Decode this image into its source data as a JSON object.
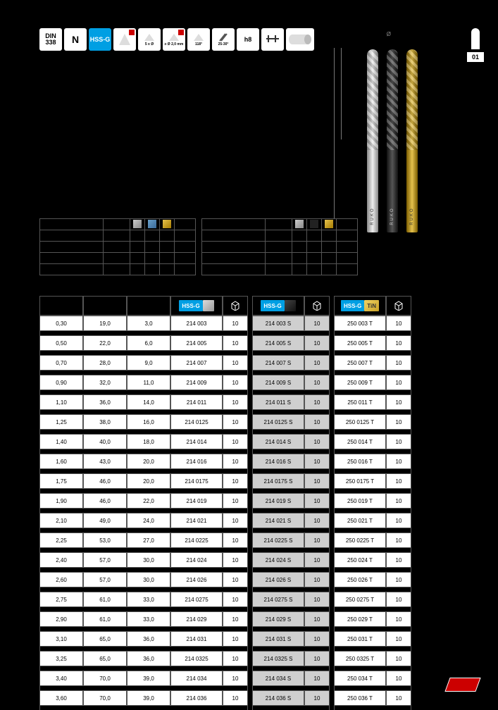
{
  "page_indicator": "01",
  "icons": {
    "din_top": "DIN",
    "din_bottom": "338",
    "n": "N",
    "hssg": "HSS-G",
    "depth": "5 x Ø",
    "diam": "≥ Ø 2,0 mm",
    "angle": "118°",
    "helix": "25-30°",
    "tol": "h8"
  },
  "drill_brand": "RUKO",
  "diam_symbol": "Ø",
  "headers": {
    "hssg": "HSS-G",
    "tin": "TiN",
    "pack_glyph": "📦"
  },
  "colors": {
    "accent_blue": "#009fe3",
    "accent_red": "#c00",
    "gold": "#e6c24d",
    "row_white": "#ffffff",
    "row_grey": "#cfcfcf",
    "border": "#555555",
    "bg": "#000000"
  },
  "set_table_left_cols": [
    90,
    38,
    20,
    20,
    20,
    30
  ],
  "set_table_right_cols": [
    90,
    38,
    20,
    20,
    20,
    30
  ],
  "rows": [
    {
      "d": "0,30",
      "l1": "19,0",
      "l2": "3,0",
      "a": "214 003",
      "p": "10",
      "s": "214 003 S",
      "ps": "10",
      "t": "250 003 T",
      "pt": "10"
    },
    {
      "d": "0,50",
      "l1": "22,0",
      "l2": "6,0",
      "a": "214 005",
      "p": "10",
      "s": "214 005 S",
      "ps": "10",
      "t": "250 005 T",
      "pt": "10"
    },
    {
      "d": "0,70",
      "l1": "28,0",
      "l2": "9,0",
      "a": "214 007",
      "p": "10",
      "s": "214 007 S",
      "ps": "10",
      "t": "250 007 T",
      "pt": "10"
    },
    {
      "d": "0,90",
      "l1": "32,0",
      "l2": "11,0",
      "a": "214 009",
      "p": "10",
      "s": "214 009 S",
      "ps": "10",
      "t": "250 009 T",
      "pt": "10"
    },
    {
      "d": "1,10",
      "l1": "36,0",
      "l2": "14,0",
      "a": "214 011",
      "p": "10",
      "s": "214 011 S",
      "ps": "10",
      "t": "250 011 T",
      "pt": "10"
    },
    {
      "d": "1,25",
      "l1": "38,0",
      "l2": "16,0",
      "a": "214 0125",
      "p": "10",
      "s": "214 0125 S",
      "ps": "10",
      "t": "250 0125 T",
      "pt": "10"
    },
    {
      "d": "1,40",
      "l1": "40,0",
      "l2": "18,0",
      "a": "214 014",
      "p": "10",
      "s": "214 014 S",
      "ps": "10",
      "t": "250 014 T",
      "pt": "10"
    },
    {
      "d": "1,60",
      "l1": "43,0",
      "l2": "20,0",
      "a": "214 016",
      "p": "10",
      "s": "214 016 S",
      "ps": "10",
      "t": "250 016 T",
      "pt": "10"
    },
    {
      "d": "1,75",
      "l1": "46,0",
      "l2": "20,0",
      "a": "214 0175",
      "p": "10",
      "s": "214 0175 S",
      "ps": "10",
      "t": "250 0175 T",
      "pt": "10"
    },
    {
      "d": "1,90",
      "l1": "46,0",
      "l2": "22,0",
      "a": "214 019",
      "p": "10",
      "s": "214 019 S",
      "ps": "10",
      "t": "250 019 T",
      "pt": "10"
    },
    {
      "d": "2,10",
      "l1": "49,0",
      "l2": "24,0",
      "a": "214 021",
      "p": "10",
      "s": "214 021 S",
      "ps": "10",
      "t": "250 021 T",
      "pt": "10"
    },
    {
      "d": "2,25",
      "l1": "53,0",
      "l2": "27,0",
      "a": "214 0225",
      "p": "10",
      "s": "214 0225 S",
      "ps": "10",
      "t": "250 0225 T",
      "pt": "10"
    },
    {
      "d": "2,40",
      "l1": "57,0",
      "l2": "30,0",
      "a": "214 024",
      "p": "10",
      "s": "214 024 S",
      "ps": "10",
      "t": "250 024 T",
      "pt": "10"
    },
    {
      "d": "2,60",
      "l1": "57,0",
      "l2": "30,0",
      "a": "214 026",
      "p": "10",
      "s": "214 026 S",
      "ps": "10",
      "t": "250 026 T",
      "pt": "10"
    },
    {
      "d": "2,75",
      "l1": "61,0",
      "l2": "33,0",
      "a": "214 0275",
      "p": "10",
      "s": "214 0275 S",
      "ps": "10",
      "t": "250 0275 T",
      "pt": "10"
    },
    {
      "d": "2,90",
      "l1": "61,0",
      "l2": "33,0",
      "a": "214 029",
      "p": "10",
      "s": "214 029 S",
      "ps": "10",
      "t": "250 029 T",
      "pt": "10"
    },
    {
      "d": "3,10",
      "l1": "65,0",
      "l2": "36,0",
      "a": "214 031",
      "p": "10",
      "s": "214 031 S",
      "ps": "10",
      "t": "250 031 T",
      "pt": "10"
    },
    {
      "d": "3,25",
      "l1": "65,0",
      "l2": "36,0",
      "a": "214 0325",
      "p": "10",
      "s": "214 0325 S",
      "ps": "10",
      "t": "250 0325 T",
      "pt": "10"
    },
    {
      "d": "3,40",
      "l1": "70,0",
      "l2": "39,0",
      "a": "214 034",
      "p": "10",
      "s": "214 034 S",
      "ps": "10",
      "t": "250 034 T",
      "pt": "10"
    },
    {
      "d": "3,60",
      "l1": "70,0",
      "l2": "39,0",
      "a": "214 036",
      "p": "10",
      "s": "214 036 S",
      "ps": "10",
      "t": "250 036 T",
      "pt": "10"
    }
  ]
}
